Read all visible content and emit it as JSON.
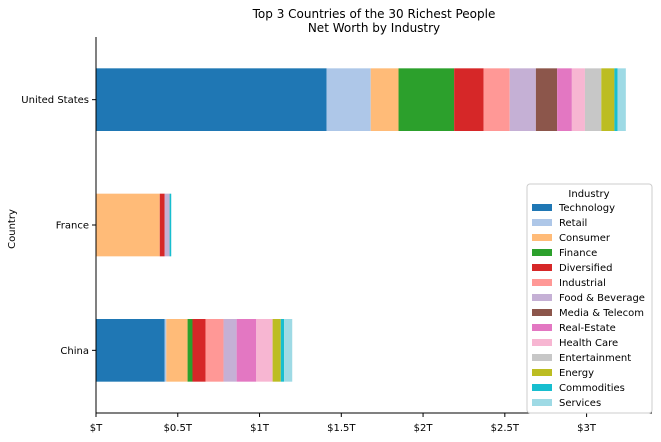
{
  "chart_data": {
    "type": "bar",
    "orientation": "horizontal",
    "stacked": true,
    "title": "Top 3 Countries of the 30 Richest People",
    "subtitle": "Net Worth by Industry",
    "ylabel": "Country",
    "xlabel": "",
    "xlim": [
      0,
      3.4
    ],
    "x_ticks": [
      0,
      0.5,
      1,
      1.5,
      2,
      2.5,
      3
    ],
    "x_tick_labels": [
      "$T",
      "$0.5T",
      "$1T",
      "$1.5T",
      "$2T",
      "$2.5T",
      "$3T"
    ],
    "categories": [
      "China",
      "France",
      "United States"
    ],
    "legend_title": "Industry",
    "legend_position": "right",
    "grid": false,
    "series": [
      {
        "name": "Technology",
        "color": "#1f77b4",
        "values": [
          0.42,
          0.0,
          1.41
        ]
      },
      {
        "name": "Retail",
        "color": "#aec7e8",
        "values": [
          0.01,
          0.0,
          0.27
        ]
      },
      {
        "name": "Consumer",
        "color": "#ffbb78",
        "values": [
          0.13,
          0.39,
          0.17
        ]
      },
      {
        "name": "Finance",
        "color": "#2ca02c",
        "values": [
          0.03,
          0.0,
          0.34
        ]
      },
      {
        "name": "Diversified",
        "color": "#d62728",
        "values": [
          0.08,
          0.03,
          0.18
        ]
      },
      {
        "name": "Industrial",
        "color": "#ff9896",
        "values": [
          0.11,
          0.0,
          0.16
        ]
      },
      {
        "name": "Food & Beverage",
        "color": "#c5b0d5",
        "values": [
          0.08,
          0.03,
          0.16
        ]
      },
      {
        "name": "Media & Telecom",
        "color": "#8c564b",
        "values": [
          0.0,
          0.0,
          0.13
        ]
      },
      {
        "name": "Real-Estate",
        "color": "#e377c2",
        "values": [
          0.12,
          0.0,
          0.09
        ]
      },
      {
        "name": "Health Care",
        "color": "#f7b6d2",
        "values": [
          0.1,
          0.0,
          0.08
        ]
      },
      {
        "name": "Entertainment",
        "color": "#c7c7c7",
        "values": [
          0.0,
          0.0,
          0.1
        ]
      },
      {
        "name": "Energy",
        "color": "#bcbd22",
        "values": [
          0.05,
          0.0,
          0.08
        ]
      },
      {
        "name": "Commodities",
        "color": "#17becf",
        "values": [
          0.02,
          0.01,
          0.02
        ]
      },
      {
        "name": "Services",
        "color": "#9edae5",
        "values": [
          0.05,
          0.0,
          0.05
        ]
      }
    ]
  }
}
